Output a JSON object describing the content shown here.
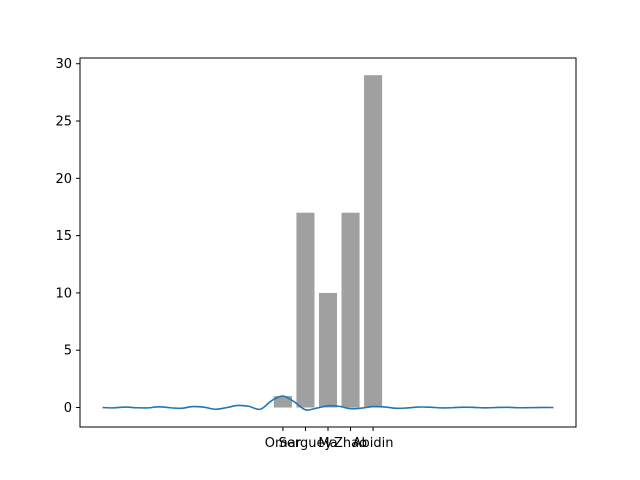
{
  "chart_data": {
    "type": "bar",
    "categories": [
      "Omar",
      "Serguey",
      "Ma",
      "Zhao",
      "Abidin"
    ],
    "values": [
      1,
      17,
      10,
      17,
      29
    ],
    "bar_color": "#a0a0a0",
    "line_series": {
      "color": "#1f77b4",
      "x": [
        -10,
        -9.5,
        -9,
        -8.5,
        -8,
        -7.5,
        -7,
        -6.5,
        -6,
        -5.5,
        -5,
        -4.5,
        -4,
        -3.5,
        -3,
        -2.5,
        -2,
        -1.5,
        -1,
        -0.5,
        0,
        0.5,
        1,
        1.5,
        2,
        2.5,
        3,
        3.5,
        4,
        4.5,
        5,
        5.5,
        6,
        6.5,
        7,
        7.5,
        8,
        8.5,
        9,
        9.5,
        10
      ],
      "y": [
        0,
        -0.03,
        0.04,
        -0.02,
        -0.03,
        0.06,
        -0.02,
        -0.07,
        0.08,
        0.03,
        -0.15,
        -0.01,
        0.18,
        0.1,
        -0.15,
        0.6,
        1.0,
        0.5,
        -0.2,
        -0.05,
        0.15,
        0.1,
        -0.1,
        -0.05,
        0.08,
        0.05,
        -0.06,
        -0.04,
        0.04,
        0.03,
        -0.03,
        -0.02,
        0.03,
        0.01,
        -0.03,
        0.01,
        0.02,
        -0.02,
        -0.01,
        0.01,
        0
      ]
    },
    "title": "",
    "xlabel": "",
    "ylabel": "",
    "xlim": [
      -11,
      11
    ],
    "ylim": [
      -1.7,
      30.5
    ],
    "yticks": [
      0,
      5,
      10,
      15,
      20,
      25,
      30
    ],
    "bar_positions": [
      -2,
      -1,
      0,
      1,
      2
    ],
    "grid": false,
    "legend": "none"
  }
}
